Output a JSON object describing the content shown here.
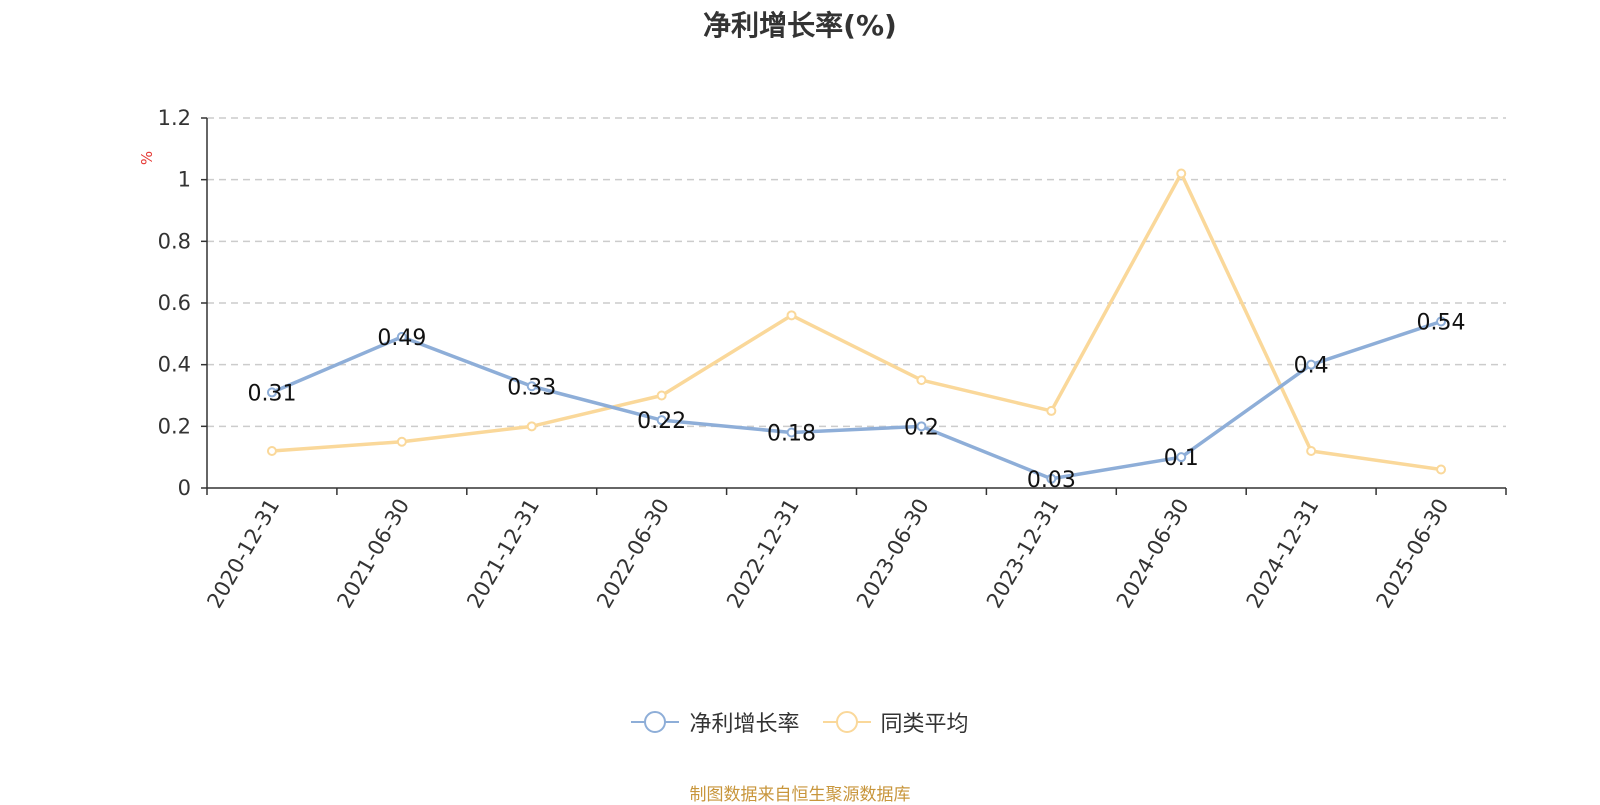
{
  "chart_data": {
    "type": "line",
    "title": "净利增长率(%)",
    "ylabel": "%",
    "xlabel": "",
    "categories": [
      "2020-12-31",
      "2021-06-30",
      "2021-12-31",
      "2022-06-30",
      "2022-12-31",
      "2023-06-30",
      "2023-12-31",
      "2024-06-30",
      "2024-12-31",
      "2025-06-30"
    ],
    "ylim": [
      0,
      1.2
    ],
    "yticks": [
      "0",
      "0.2",
      "0.4",
      "0.6",
      "0.8",
      "1",
      "1.2"
    ],
    "grid": true,
    "legend_position": "bottom",
    "series": [
      {
        "name": "净利增长率",
        "color": "#8eaed8",
        "values": [
          0.31,
          0.49,
          0.33,
          0.22,
          0.18,
          0.2,
          0.03,
          0.1,
          0.4,
          0.54
        ],
        "data_labels": [
          "0.31",
          "0.49",
          "0.33",
          "0.22",
          "0.18",
          "0.2",
          "0.03",
          "0.1",
          "0.4",
          "0.54"
        ]
      },
      {
        "name": "同类平均",
        "color": "#fad89a",
        "values": [
          0.12,
          0.15,
          0.2,
          0.3,
          0.56,
          0.35,
          0.25,
          1.02,
          0.12,
          0.06
        ]
      }
    ]
  },
  "footer": {
    "source": "制图数据来自恒生聚源数据库"
  }
}
